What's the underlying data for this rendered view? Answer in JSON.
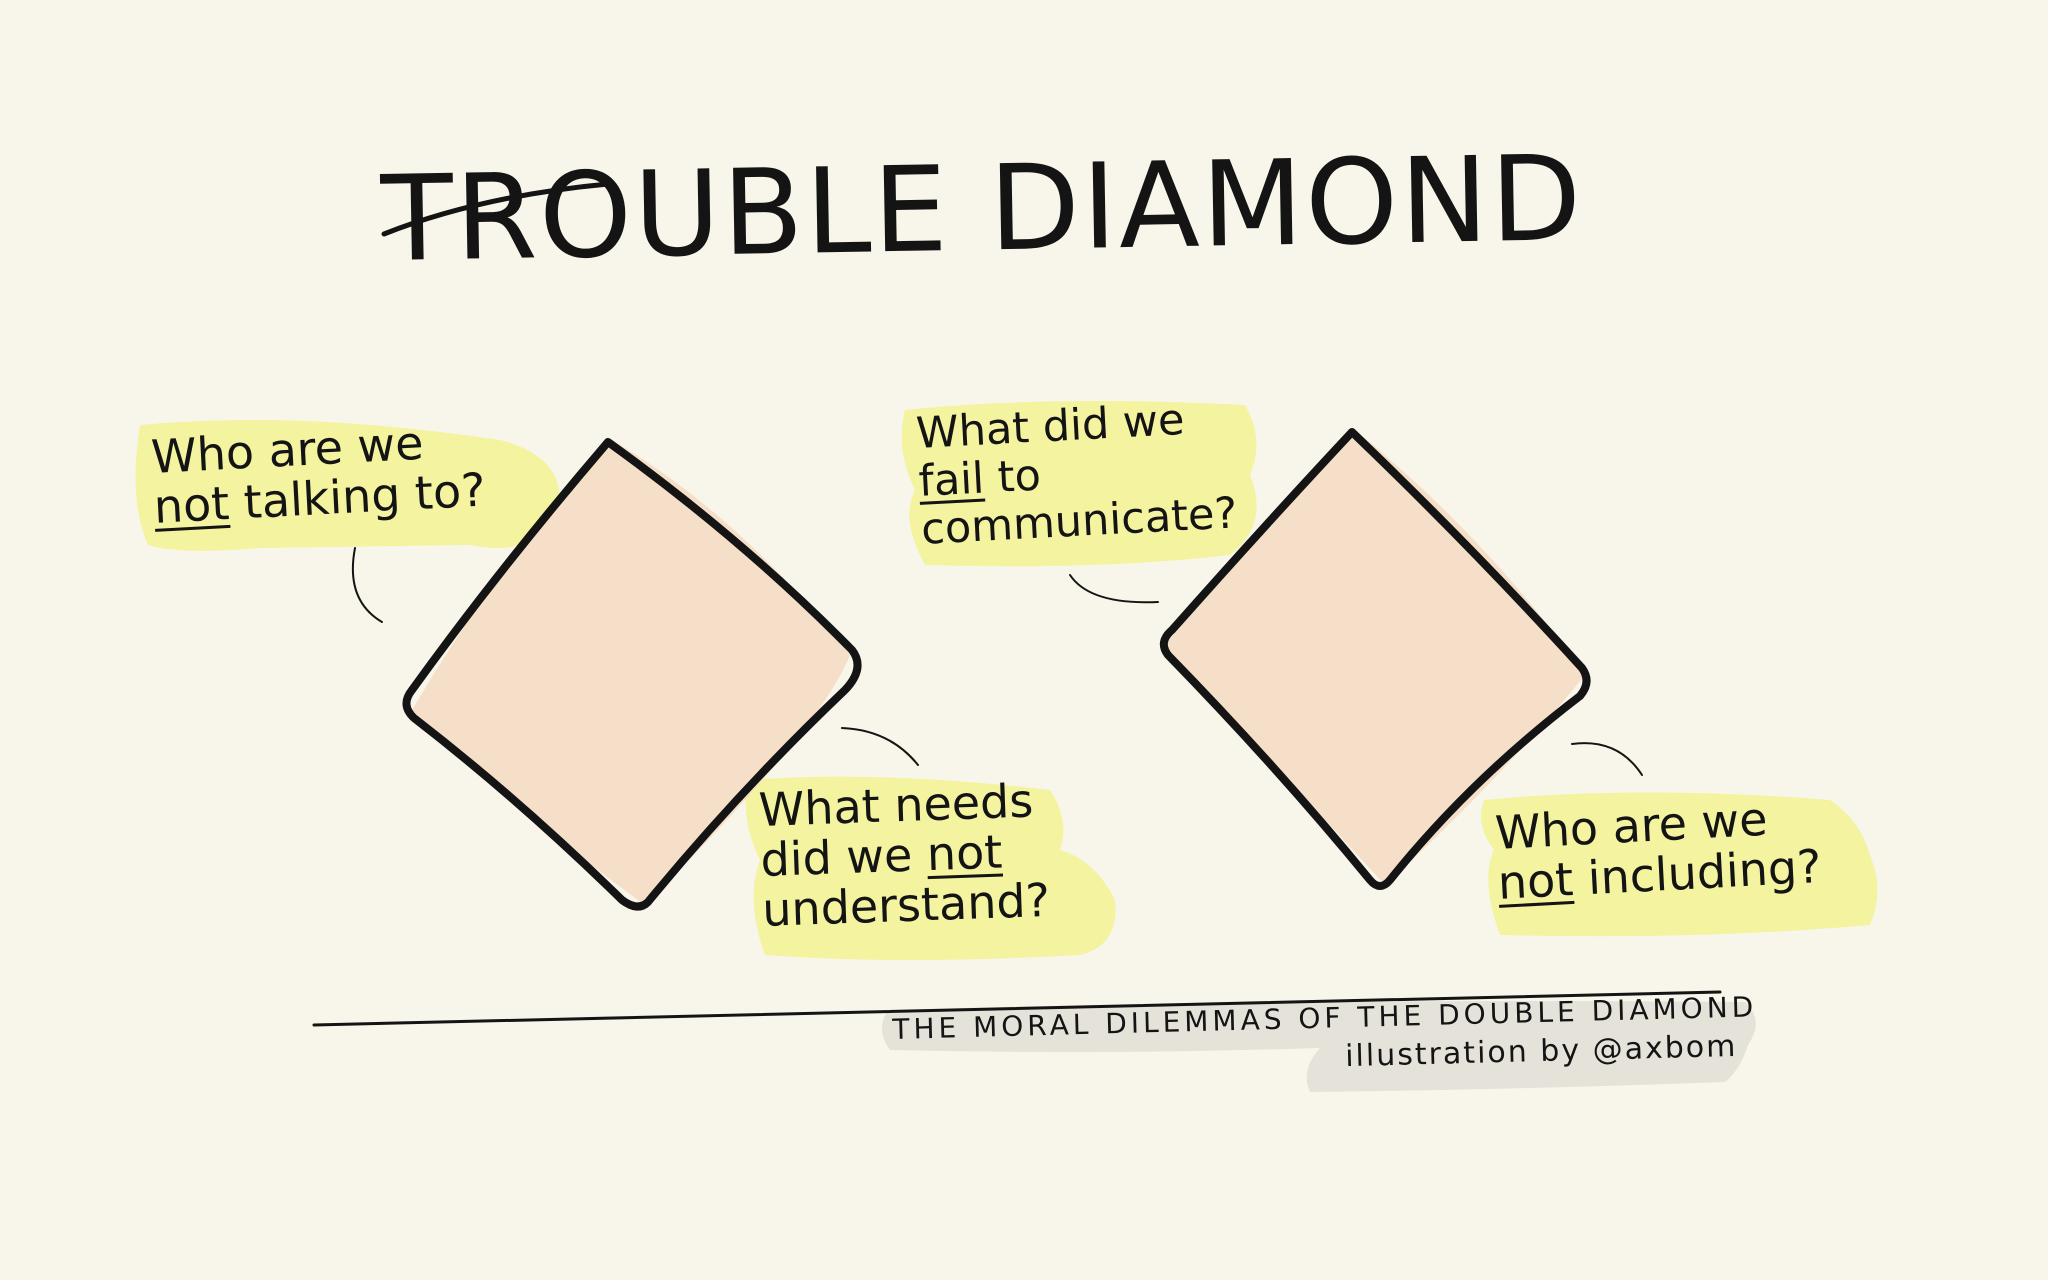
{
  "title": "TROUBLE DIAMOND",
  "questions": {
    "first_top": {
      "line1": "Who are we",
      "emph": "not",
      "rest": " talking to?"
    },
    "second_top": {
      "line1": "What did we",
      "emph": "fail",
      "rest": " to",
      "line3": "communicate?"
    },
    "first_bottom": {
      "line1": "What needs",
      "pre": "did we ",
      "emph": "not",
      "line3": "understand?"
    },
    "second_bottom": {
      "line1": "Who are we",
      "emph": "not",
      "rest": " including?"
    }
  },
  "caption": {
    "line1": "THE MORAL DILEMMAS OF THE DOUBLE DIAMOND",
    "line2": "illustration by @axbom"
  },
  "colors": {
    "background": "#f8f6ea",
    "highlight": "#f3f29c",
    "diamond_fill": "#f6dfc8",
    "ink": "#141414",
    "caption_highlight": "#e5e3d9"
  }
}
